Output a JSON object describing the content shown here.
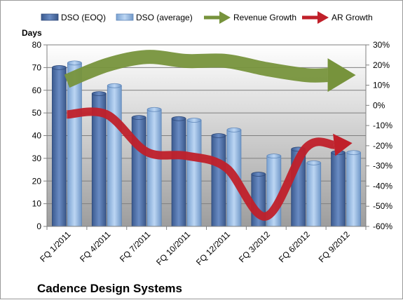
{
  "chart_data": {
    "type": "bar",
    "title": "Cadence Design Systems",
    "ylabel": "Days",
    "ylim": [
      0,
      80
    ],
    "yticks": [
      0,
      10,
      20,
      30,
      40,
      50,
      60,
      70,
      80
    ],
    "y2lim": [
      -60,
      30
    ],
    "y2ticks": [
      "-60%",
      "-50%",
      "-40%",
      "-30%",
      "-20%",
      "-10%",
      "0%",
      "10%",
      "20%",
      "30%"
    ],
    "y2tick_values": [
      -60,
      -50,
      -40,
      -30,
      -20,
      -10,
      0,
      10,
      20,
      30
    ],
    "categories": [
      "FQ 1/2011",
      "FQ 4/2011",
      "FQ 7/2011",
      "FQ 10/2011",
      "FQ 12/2011",
      "FQ 3/2012",
      "FQ 6/2012",
      "FQ 9/2012"
    ],
    "grid": true,
    "legend_position": "top",
    "series": [
      {
        "name": "DSO (EOQ)",
        "type": "bar",
        "axis": "left",
        "color": "#4f6fa3",
        "values": [
          70,
          58.5,
          48,
          47.5,
          40,
          23,
          34,
          32.5
        ]
      },
      {
        "name": "DSO (average)",
        "type": "bar",
        "axis": "left",
        "color": "#8fb3dd",
        "values": [
          72,
          62,
          51.5,
          46.8,
          42.5,
          31,
          28,
          32.5
        ]
      },
      {
        "name": "Revenue Growth",
        "type": "arrow",
        "axis": "right",
        "color": "#77933c",
        "values": [
          12,
          20,
          24,
          22,
          22,
          18,
          15,
          15
        ]
      },
      {
        "name": "AR Growth",
        "type": "arrow",
        "axis": "right",
        "color": "#c0202a",
        "values": [
          -4.5,
          -4.5,
          -23,
          -25,
          -31,
          -55,
          -21,
          -19
        ]
      }
    ]
  }
}
